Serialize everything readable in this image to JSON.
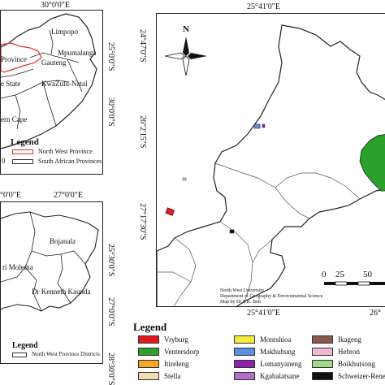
{
  "inset_sa": {
    "top_coord": "30°0'0\"E",
    "right_coords": [
      "25°0'0\"S",
      "30°0'0\"S"
    ],
    "labels": [
      "Limpopo",
      "Province",
      "Gauteng",
      "Mpumalanga",
      "e State",
      "KwaZulu-Natal",
      "ern Cape"
    ],
    "legend": {
      "title": "Legend",
      "items": [
        {
          "label": "North West Province",
          "color": "#e03030"
        },
        {
          "label": "South African Provinces",
          "color": "#333333"
        }
      ]
    },
    "cut_text": "0"
  },
  "inset_districts": {
    "left_coord": "°0'0\"E",
    "top_coord": "27°0'0\"E",
    "right_coords": [
      "25°30'0\"S",
      "27°0'0\"S",
      "28°30'0\"S"
    ],
    "labels": [
      "Bojanala",
      "ri Molema",
      "Dr Kenneth Kaunda"
    ],
    "legend": {
      "title": "Legend",
      "items": [
        {
          "label": "North West Province Districts",
          "color": "#333333"
        }
      ]
    }
  },
  "main_map": {
    "top_coord": "25°41'0\"E",
    "bottom_coords": [
      "25°41'0\"E",
      "26°"
    ],
    "left_coords": [
      "24°47'0\"S",
      "26°2'15\"S",
      "27°17'30\"S"
    ],
    "north_label": "N",
    "scale": {
      "ticks": [
        "0",
        "25",
        "50"
      ]
    },
    "credits": [
      "North West University",
      "Department of Geography & Environmental Science",
      "Map by Dr S.K. Bett"
    ]
  },
  "legend_main": {
    "title": "Legend",
    "items": [
      {
        "label": "Vryburg",
        "color": "#e31a1c"
      },
      {
        "label": "Montshioa",
        "color": "#f5ec3a"
      },
      {
        "label": "Ikageng",
        "color": "#8c5a4a"
      },
      {
        "label": "Ventersdorp",
        "color": "#2ca02c"
      },
      {
        "label": "Makhubung",
        "color": "#5b8fe0"
      },
      {
        "label": "Hebron",
        "color": "#f2b9d4"
      },
      {
        "label": "Itireleng",
        "color": "#f5a623"
      },
      {
        "label": "Lomanyaneng",
        "color": "#8e1fb0"
      },
      {
        "label": "Boikhutsong",
        "color": "#a1d98b"
      },
      {
        "label": "Stella",
        "color": "#f5dcb0"
      },
      {
        "label": "Kgabalatsane",
        "color": "#b070c8"
      },
      {
        "label": "Schweizer-Reneke",
        "color": "#111111"
      }
    ]
  }
}
